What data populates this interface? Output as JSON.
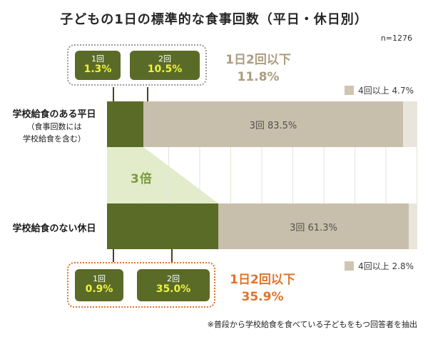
{
  "title": "子どもの1日の標準的な食事回数（平日・休日別）",
  "sample_note": "n=1276",
  "footnote": "※普段から学校給食を食べている子どもをもつ回答者を抽出",
  "multiplier_label": "3倍",
  "rows": {
    "weekday": {
      "label": "学校給食のある平日",
      "note_line1": "（食事回数には",
      "note_line2": "学校給食を含む）",
      "seg3_label": "3回 83.5%",
      "legend4_label": "4回以上 4.7%",
      "callout": {
        "box1_label": "1回",
        "box1_value": "1.3%",
        "box2_label": "2回",
        "box2_value": "10.5%",
        "summary_label": "1日2回以下",
        "summary_value": "11.8%"
      }
    },
    "holiday": {
      "label": "学校給食のない休日",
      "seg3_label": "3回 61.3%",
      "legend4_label": "4回以上 2.8%",
      "callout": {
        "box1_label": "1回",
        "box1_value": "0.9%",
        "box2_label": "2回",
        "box2_value": "35.0%",
        "summary_label": "1日2回以下",
        "summary_value": "35.9%"
      }
    }
  },
  "colors": {
    "dark_green": "#5a6b28",
    "value_yellow": "#eef23e",
    "beige": "#c8beac",
    "light_beige": "#e9e5da",
    "legend_beige": "#cfc5b2",
    "trapezoid_green": "#e3ecca",
    "multiplier_green": "#7d9a3d",
    "summary_tan": "#ab9d7f",
    "accent_orange": "#e0742c",
    "grid_line": "#e6e2d8",
    "text_dark": "#2a2a2a"
  },
  "chart_data": {
    "type": "bar",
    "orientation": "horizontal",
    "stacked": true,
    "title": "子どもの1日の標準的な食事回数（平日・休日別）",
    "n_label": "n=1276",
    "unit": "%",
    "categories": [
      "学校給食のある平日（食事回数には学校給食を含む）",
      "学校給食のない休日"
    ],
    "series": [
      {
        "name": "1回",
        "values": [
          1.3,
          0.9
        ]
      },
      {
        "name": "2回",
        "values": [
          10.5,
          35.0
        ]
      },
      {
        "name": "3回",
        "values": [
          83.5,
          61.3
        ]
      },
      {
        "name": "4回以上",
        "values": [
          4.7,
          2.8
        ]
      }
    ],
    "annotations": [
      {
        "category": "学校給食のある平日",
        "label": "1日2回以下",
        "value": 11.8
      },
      {
        "category": "学校給食のない休日",
        "label": "1日2回以下",
        "value": 35.9
      },
      {
        "label": "3倍"
      }
    ],
    "xlim": [
      0,
      100
    ],
    "grid": true,
    "legend_position": "right-of-bars"
  }
}
